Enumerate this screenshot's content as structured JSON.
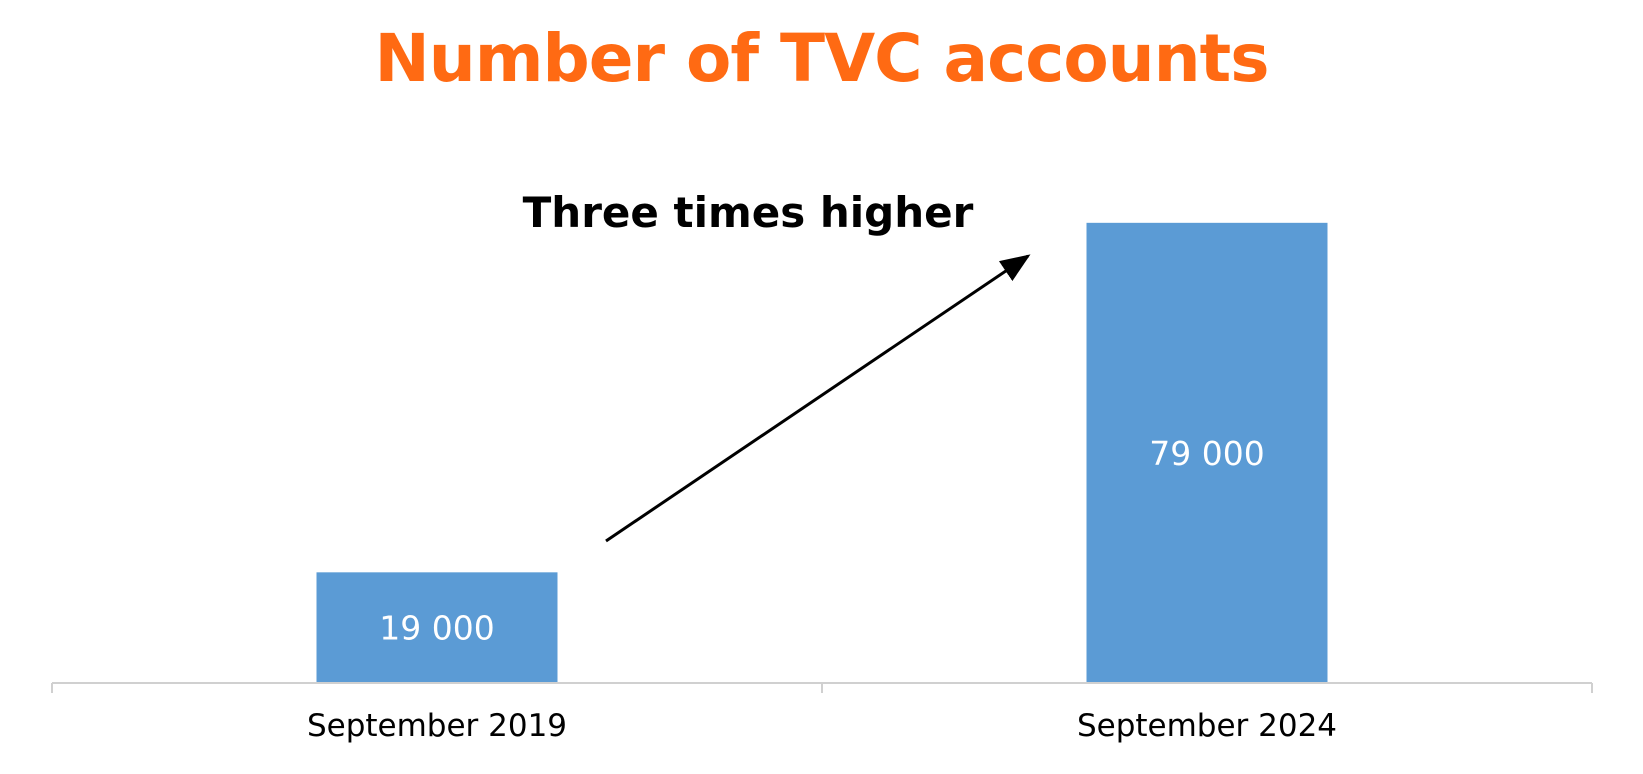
{
  "colors": {
    "title": "#ff6a13",
    "bar": "#5b9bd5",
    "axis": "#d0d0d0",
    "text": "#000000",
    "data_label": "#ffffff"
  },
  "chart_data": {
    "type": "bar",
    "title": "Number of TVC accounts",
    "categories": [
      "September 2019",
      "September 2024"
    ],
    "values": [
      19000,
      79000
    ],
    "data_labels": [
      "19 000",
      "79 000"
    ],
    "annotation": "Three times higher",
    "xlabel": "",
    "ylabel": "",
    "ylim": [
      0,
      80000
    ],
    "grid": false,
    "legend": "none"
  }
}
